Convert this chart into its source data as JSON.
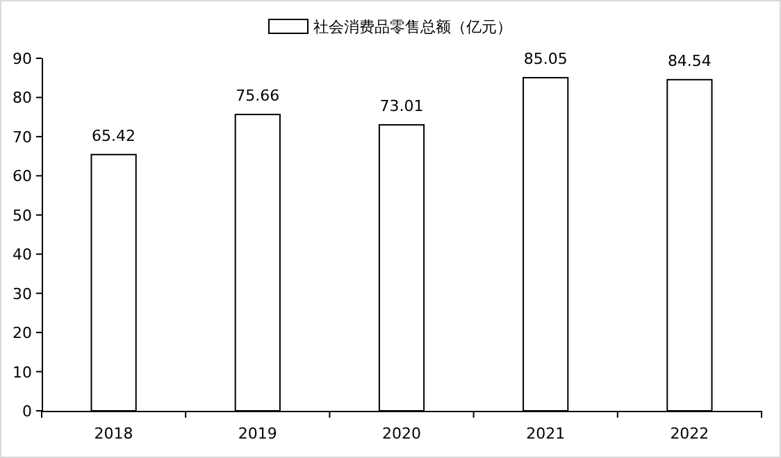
{
  "chart_data": {
    "type": "bar",
    "categories": [
      "2018",
      "2019",
      "2020",
      "2021",
      "2022"
    ],
    "series": [
      {
        "name": "社会消费品零售总额（亿元）",
        "color": "#ffffff",
        "values": [
          65.42,
          75.66,
          73.01,
          85.05,
          84.54
        ]
      }
    ],
    "ylim": [
      0,
      90
    ],
    "yticks": [
      0,
      10,
      20,
      30,
      40,
      50,
      60,
      70,
      80,
      90
    ],
    "data_labels": true,
    "legend": "top",
    "grid": false
  }
}
